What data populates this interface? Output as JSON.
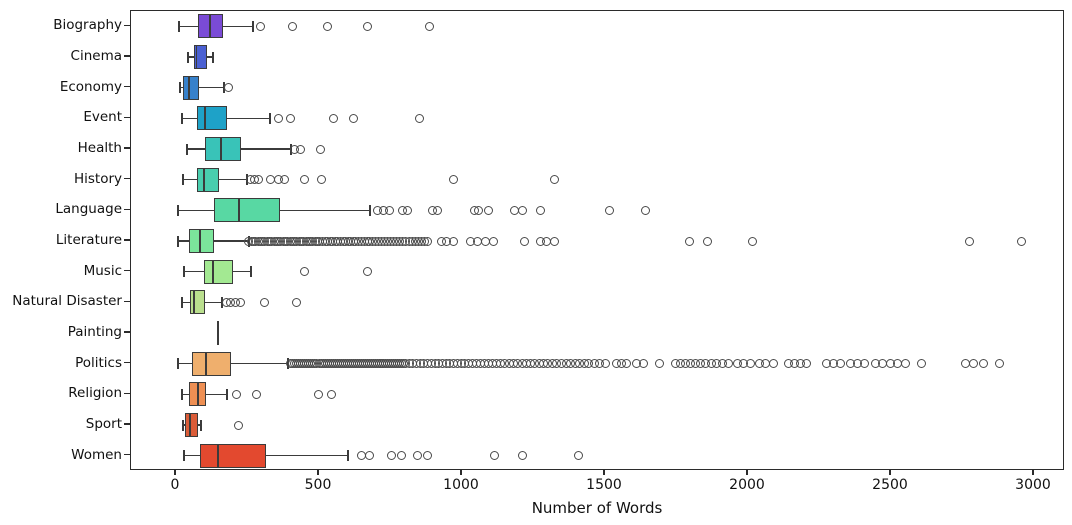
{
  "chart_data": {
    "type": "boxplot",
    "orientation": "horizontal",
    "title": "",
    "xlabel": "Number of Words",
    "ylabel": "",
    "xlim": [
      -160,
      3110
    ],
    "x_ticks": [
      0,
      500,
      1000,
      1500,
      2000,
      2500,
      3000
    ],
    "grid": false,
    "legend": "none",
    "categories": [
      "Biography",
      "Cinema",
      "Economy",
      "Event",
      "Health",
      "History",
      "Language",
      "Literature",
      "Music",
      "Natural Disaster",
      "Painting",
      "Politics",
      "Religion",
      "Sport",
      "Women"
    ],
    "edge_color": "#3b3b3b",
    "flier_edge_color": "#4a4a4a",
    "series": [
      {
        "name": "Biography",
        "color": "#7a4bd6",
        "whisker_low": 10,
        "q1": 77,
        "median": 119,
        "q3": 164,
        "whisker_high": 269,
        "outliers": [
          294,
          409,
          531,
          668,
          888
        ]
      },
      {
        "name": "Cinema",
        "color": "#4a60d2",
        "whisker_low": 42,
        "q1": 64,
        "median": 72,
        "q3": 108,
        "whisker_high": 129,
        "outliers": []
      },
      {
        "name": "Economy",
        "color": "#3781cb",
        "whisker_low": 14,
        "q1": 24,
        "median": 45,
        "q3": 80,
        "whisker_high": 168,
        "outliers": [
          182
        ]
      },
      {
        "name": "Event",
        "color": "#1ea2c8",
        "whisker_low": 21,
        "q1": 73,
        "median": 101,
        "q3": 178,
        "whisker_high": 329,
        "outliers": [
          360,
          399,
          552,
          619,
          853
        ]
      },
      {
        "name": "Health",
        "color": "#39c3b8",
        "whisker_low": 38,
        "q1": 101,
        "median": 157,
        "q3": 227,
        "whisker_high": 402,
        "outliers": [
          413,
          437,
          504
        ]
      },
      {
        "name": "History",
        "color": "#49ceae",
        "whisker_low": 24,
        "q1": 73,
        "median": 98,
        "q3": 150,
        "whisker_high": 248,
        "outliers": [
          259,
          273,
          290,
          332,
          357,
          381,
          448,
          507,
          969,
          1322
        ]
      },
      {
        "name": "Language",
        "color": "#58d8a3",
        "whisker_low": 7,
        "q1": 133,
        "median": 220,
        "q3": 364,
        "whisker_high": 678,
        "outliers": [
          706,
          727,
          745,
          793,
          811,
          898,
          916,
          1042,
          1059,
          1091,
          1182,
          1213,
          1273,
          1514,
          1640
        ]
      },
      {
        "name": "Literature",
        "color": "#7be59b",
        "whisker_low": 7,
        "q1": 45,
        "median": 84,
        "q3": 133,
        "whisker_high": 255,
        "outliers": [
          255,
          263,
          271,
          279,
          287,
          295,
          303,
          311,
          319,
          327,
          335,
          343,
          351,
          359,
          367,
          375,
          383,
          391,
          399,
          407,
          415,
          423,
          431,
          439,
          447,
          455,
          463,
          471,
          479,
          487,
          495,
          503,
          512,
          521,
          530,
          539,
          548,
          557,
          566,
          575,
          584,
          593,
          602,
          611,
          620,
          629,
          638,
          648,
          658,
          668,
          678,
          688,
          698,
          708,
          718,
          728,
          738,
          749,
          760,
          771,
          782,
          793,
          804,
          815,
          826,
          837,
          848,
          859,
          870,
          881,
          927,
          947,
          969,
          1031,
          1054,
          1083,
          1110,
          1217,
          1276,
          1297,
          1322,
          1794,
          1857,
          2014,
          2776,
          2955
        ]
      },
      {
        "name": "Music",
        "color": "#a3e992",
        "whisker_low": 28,
        "q1": 98,
        "median": 129,
        "q3": 199,
        "whisker_high": 262,
        "outliers": [
          448,
          671
        ]
      },
      {
        "name": "Natural Disaster",
        "color": "#badf8e",
        "whisker_low": 21,
        "q1": 49,
        "median": 63,
        "q3": 101,
        "whisker_high": 161,
        "outliers": [
          175,
          190,
          207,
          227,
          308,
          423
        ]
      },
      {
        "name": "Painting",
        "color": "#d8d97f",
        "whisker_low": 147,
        "q1": 147,
        "median": 147,
        "q3": 147,
        "whisker_high": 147,
        "outliers": []
      },
      {
        "name": "Politics",
        "color": "#efaf6d",
        "whisker_low": 7,
        "q1": 56,
        "median": 105,
        "q3": 192,
        "whisker_high": 392,
        "outliers": [
          402,
          409,
          416,
          423,
          430,
          437,
          444,
          451,
          458,
          465,
          472,
          479,
          486,
          493,
          500,
          507,
          514,
          521,
          528,
          535,
          542,
          549,
          556,
          563,
          570,
          577,
          584,
          591,
          598,
          605,
          612,
          619,
          626,
          633,
          640,
          647,
          654,
          661,
          668,
          675,
          682,
          689,
          696,
          703,
          710,
          717,
          724,
          731,
          738,
          745,
          752,
          759,
          766,
          773,
          780,
          787,
          794,
          802,
          815,
          828,
          841,
          854,
          867,
          880,
          893,
          906,
          919,
          932,
          945,
          958,
          971,
          984,
          997,
          1010,
          1024,
          1038,
          1052,
          1066,
          1080,
          1094,
          1108,
          1122,
          1136,
          1150,
          1165,
          1180,
          1195,
          1210,
          1225,
          1240,
          1255,
          1270,
          1285,
          1300,
          1316,
          1332,
          1348,
          1364,
          1380,
          1396,
          1412,
          1428,
          1444,
          1465,
          1482,
          1500,
          1540,
          1558,
          1576,
          1610,
          1633,
          1692,
          1745,
          1763,
          1781,
          1799,
          1817,
          1835,
          1853,
          1871,
          1891,
          1911,
          1931,
          1965,
          1986,
          2008,
          2040,
          2062,
          2090,
          2142,
          2163,
          2184,
          2205,
          2275,
          2298,
          2322,
          2360,
          2384,
          2408,
          2446,
          2470,
          2498,
          2524,
          2550,
          2605,
          2762,
          2790,
          2822,
          2881
        ]
      },
      {
        "name": "Religion",
        "color": "#ee8f53",
        "whisker_low": 21,
        "q1": 45,
        "median": 77,
        "q3": 105,
        "whisker_high": 178,
        "outliers": [
          213,
          283,
          497,
          542
        ]
      },
      {
        "name": "Sport",
        "color": "#db5c38",
        "whisker_low": 24,
        "q1": 31,
        "median": 49,
        "q3": 77,
        "whisker_high": 87,
        "outliers": [
          217
        ]
      },
      {
        "name": "Women",
        "color": "#e3492f",
        "whisker_low": 28,
        "q1": 84,
        "median": 147,
        "q3": 315,
        "whisker_high": 601,
        "outliers": [
          650,
          675,
          752,
          787,
          846,
          881,
          1112,
          1213,
          1409
        ]
      }
    ]
  }
}
